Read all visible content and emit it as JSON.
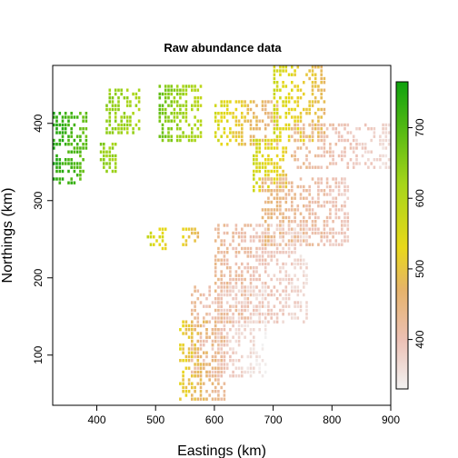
{
  "chart_data": {
    "type": "heatmap",
    "title": "Raw abundance data",
    "xlabel": "Eastings (km)",
    "ylabel": "Northings (km)",
    "xlim": [
      325,
      900
    ],
    "ylim": [
      35,
      475
    ],
    "x_ticks": [
      "400",
      "500",
      "600",
      "700",
      "800",
      "900"
    ],
    "y_ticks": [
      "100",
      "200",
      "300",
      "400"
    ],
    "cell_size_km": 5,
    "colorbar": {
      "range": [
        330,
        765
      ],
      "ticks": [
        "400",
        "500",
        "600",
        "700"
      ],
      "stops": [
        {
          "value": 330,
          "color": "#f2f2f2"
        },
        {
          "value": 400,
          "color": "#ecc0b4"
        },
        {
          "value": 470,
          "color": "#e6b36a"
        },
        {
          "value": 530,
          "color": "#e8d81a"
        },
        {
          "value": 620,
          "color": "#a6d51a"
        },
        {
          "value": 765,
          "color": "#0ea10e"
        }
      ]
    },
    "patches": [
      {
        "name": "far-west",
        "x": [
          325,
          385
        ],
        "y": [
          320,
          415
        ],
        "value": [
          745,
          680
        ],
        "density": 0.55
      },
      {
        "name": "west-2",
        "x": [
          405,
          435
        ],
        "y": [
          335,
          375
        ],
        "value": [
          650,
          620
        ],
        "density": 0.6
      },
      {
        "name": "west-3",
        "x": [
          415,
          475
        ],
        "y": [
          385,
          445
        ],
        "value": [
          640,
          610
        ],
        "density": 0.5
      },
      {
        "name": "north-central",
        "x": [
          505,
          580
        ],
        "y": [
          375,
          450
        ],
        "value": [
          670,
          590
        ],
        "density": 0.55
      },
      {
        "name": "mid-isolate",
        "x": [
          485,
          520
        ],
        "y": [
          235,
          265
        ],
        "value": [
          580,
          520
        ],
        "density": 0.5
      },
      {
        "name": "mid-isolate-2",
        "x": [
          545,
          575
        ],
        "y": [
          240,
          265
        ],
        "value": [
          520,
          470
        ],
        "density": 0.5
      },
      {
        "name": "north-east",
        "x": [
          600,
          710
        ],
        "y": [
          370,
          430
        ],
        "value": [
          560,
          420
        ],
        "density": 0.5
      },
      {
        "name": "north-east-2",
        "x": [
          700,
          790
        ],
        "y": [
          375,
          475
        ],
        "value": [
          560,
          470
        ],
        "density": 0.45
      },
      {
        "name": "central-east",
        "x": [
          665,
          725
        ],
        "y": [
          310,
          380
        ],
        "value": [
          560,
          500
        ],
        "density": 0.6
      },
      {
        "name": "east-coast",
        "x": [
          730,
          900
        ],
        "y": [
          340,
          400
        ],
        "value": [
          430,
          360
        ],
        "density": 0.45
      },
      {
        "name": "diag-upper",
        "x": [
          680,
          830
        ],
        "y": [
          240,
          330
        ],
        "value": [
          450,
          380
        ],
        "density": 0.55
      },
      {
        "name": "diag-middle",
        "x": [
          600,
          760
        ],
        "y": [
          140,
          270
        ],
        "value": [
          430,
          360
        ],
        "density": 0.5
      },
      {
        "name": "diag-lower",
        "x": [
          560,
          690
        ],
        "y": [
          70,
          190
        ],
        "value": [
          420,
          340
        ],
        "density": 0.45
      },
      {
        "name": "south-tip",
        "x": [
          540,
          620
        ],
        "y": [
          40,
          145
        ],
        "value": [
          520,
          410
        ],
        "density": 0.45
      }
    ]
  }
}
